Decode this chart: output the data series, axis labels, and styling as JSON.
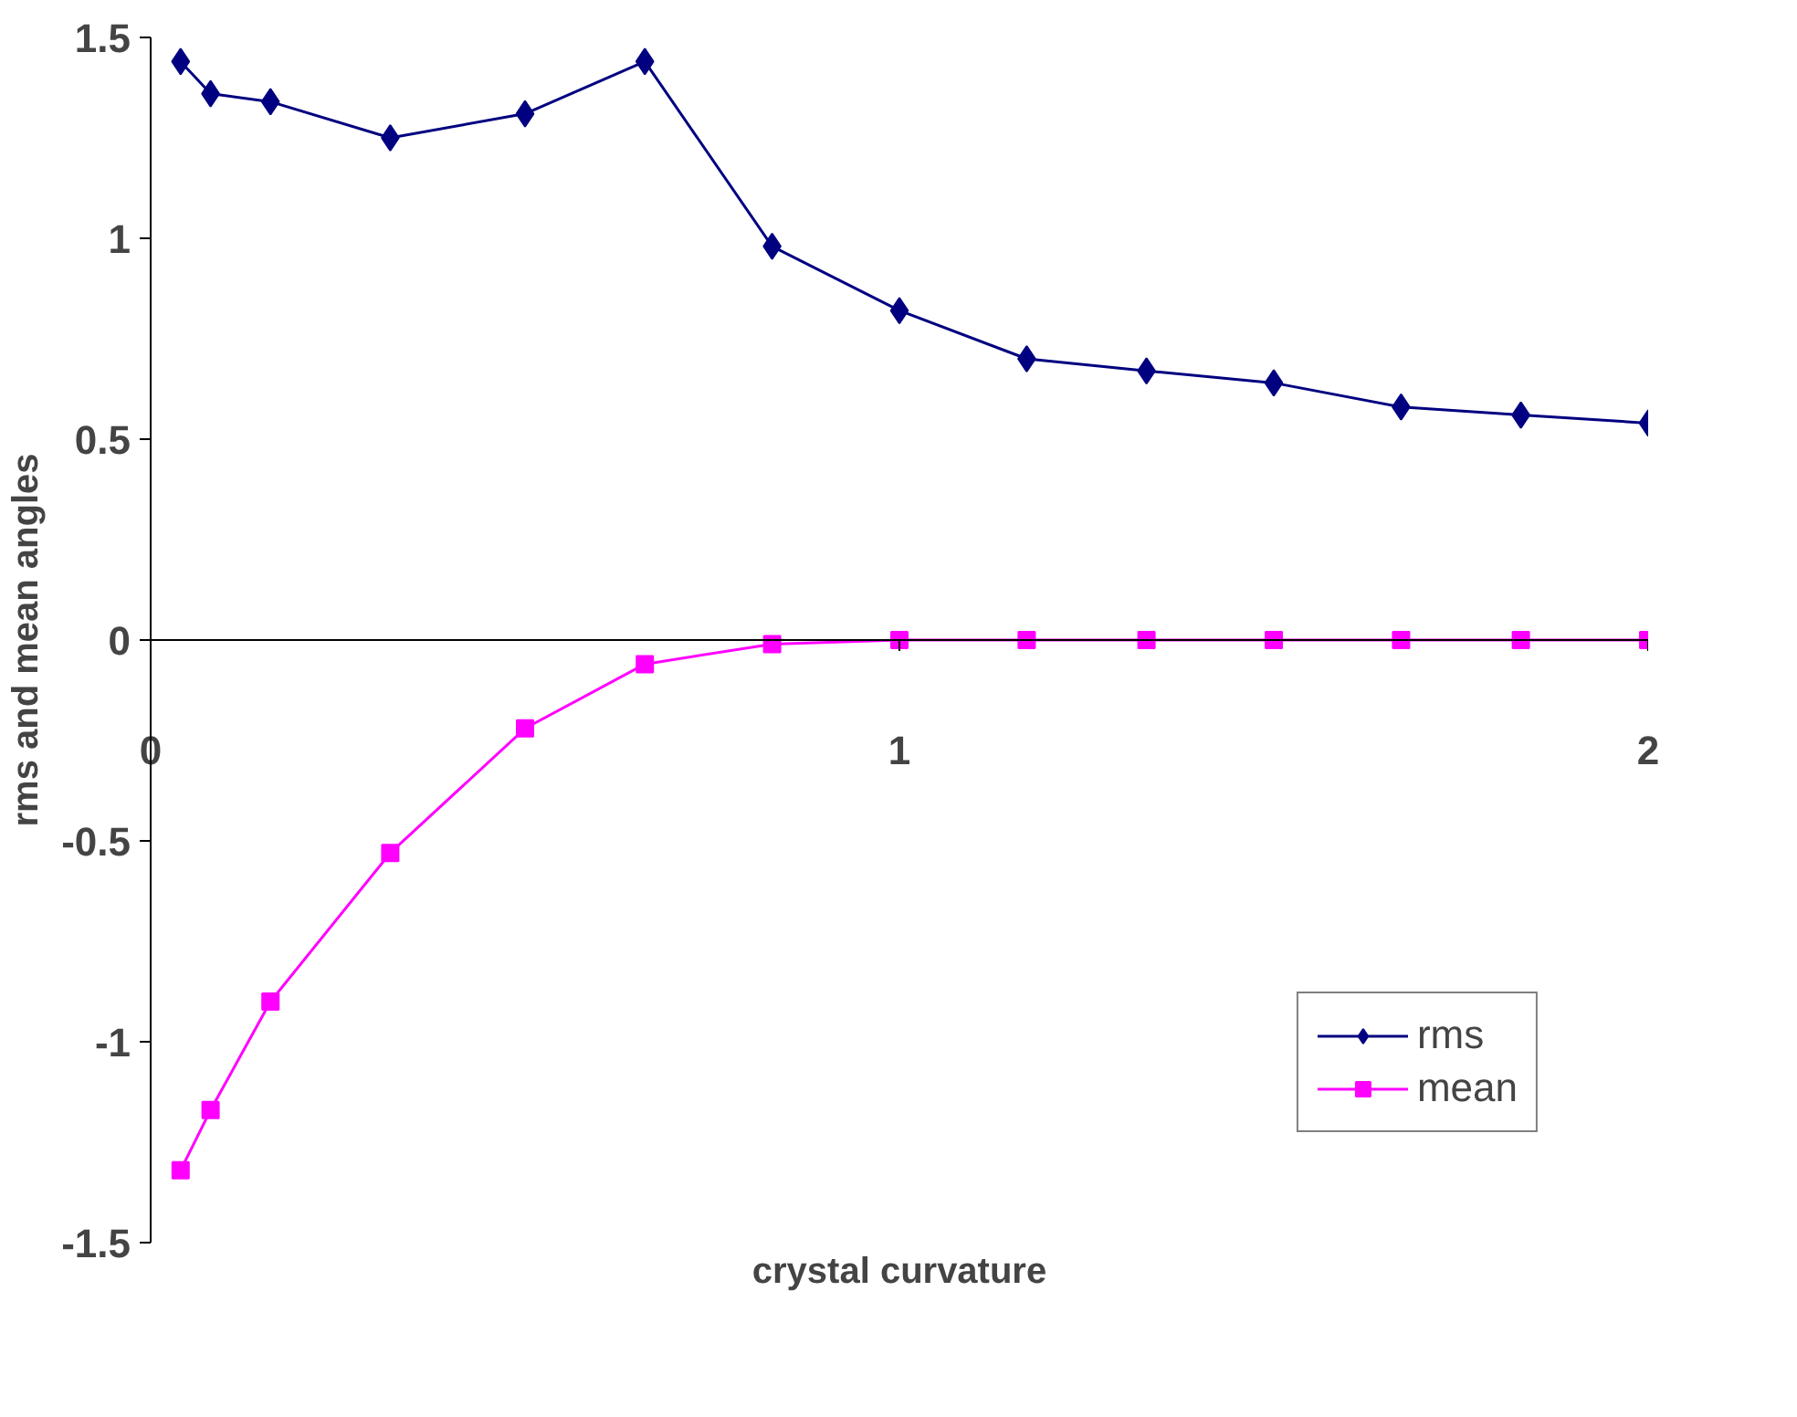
{
  "chart_data": {
    "type": "line",
    "xlabel": "crystal curvature",
    "ylabel": "rms and mean angles",
    "xlim": [
      0,
      2
    ],
    "ylim": [
      -1.5,
      1.5
    ],
    "xticks": [
      0,
      1,
      2
    ],
    "yticks": [
      -1.5,
      -1,
      -0.5,
      0,
      0.5,
      1,
      1.5
    ],
    "x": [
      0.04,
      0.08,
      0.16,
      0.32,
      0.5,
      0.66,
      0.83,
      1,
      1.17,
      1.33,
      1.5,
      1.67,
      1.83,
      2
    ],
    "series": [
      {
        "name": "rms",
        "color": "#000080",
        "marker": "diamond",
        "values": [
          1.44,
          1.36,
          1.34,
          1.25,
          1.31,
          1.44,
          0.98,
          0.82,
          0.7,
          0.67,
          0.64,
          0.58,
          0.56,
          0.54
        ]
      },
      {
        "name": "mean",
        "color": "#ff00ff",
        "marker": "square",
        "values": [
          -1.32,
          -1.17,
          -0.9,
          -0.53,
          -0.22,
          -0.06,
          -0.01,
          0,
          0,
          0,
          0,
          0,
          0,
          0
        ]
      }
    ],
    "grid": false,
    "legend": "bottom right",
    "line_style": "solid"
  }
}
